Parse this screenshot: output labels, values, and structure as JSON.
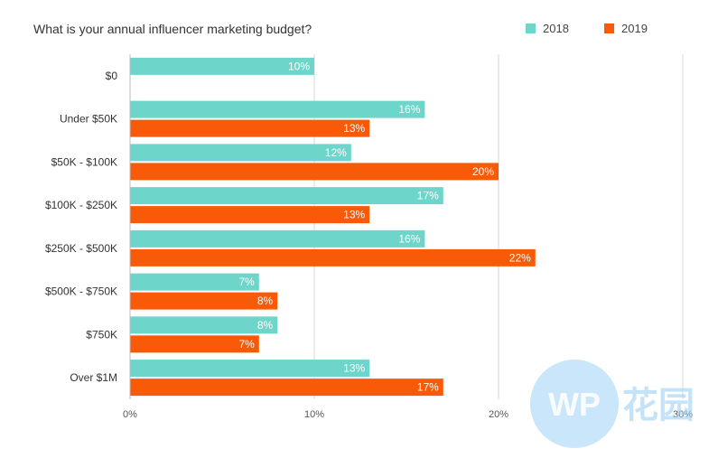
{
  "chart_data": {
    "type": "bar",
    "orientation": "horizontal",
    "title": "What is your annual influencer marketing budget?",
    "categories": [
      "$0",
      "Under $50K",
      "$50K - $100K",
      "$100K - $250K",
      "$250K - $500K",
      "$500K - $750K",
      "$750K",
      "Over $1M"
    ],
    "series": [
      {
        "name": "2018",
        "color": "#6dd5c9",
        "values": [
          10,
          16,
          12,
          17,
          16,
          7,
          8,
          13
        ],
        "labels": [
          "10%",
          "16%",
          "12%",
          "17%",
          "16%",
          "7%",
          "8%",
          "13%"
        ]
      },
      {
        "name": "2019",
        "color": "#f85a08",
        "values": [
          null,
          13,
          20,
          13,
          22,
          8,
          7,
          17
        ],
        "labels": [
          null,
          "13%",
          "20%",
          "13%",
          "22%",
          "8%",
          "7%",
          "17%"
        ]
      }
    ],
    "xlim": [
      0,
      30
    ],
    "x_ticks": [
      0,
      10,
      20,
      30
    ],
    "x_tick_labels": [
      "0%",
      "10%",
      "20%",
      "30%"
    ],
    "grid": true,
    "legend_position": "top-right"
  },
  "watermark": {
    "logo_text": "WP",
    "cjk_text": "花园"
  }
}
